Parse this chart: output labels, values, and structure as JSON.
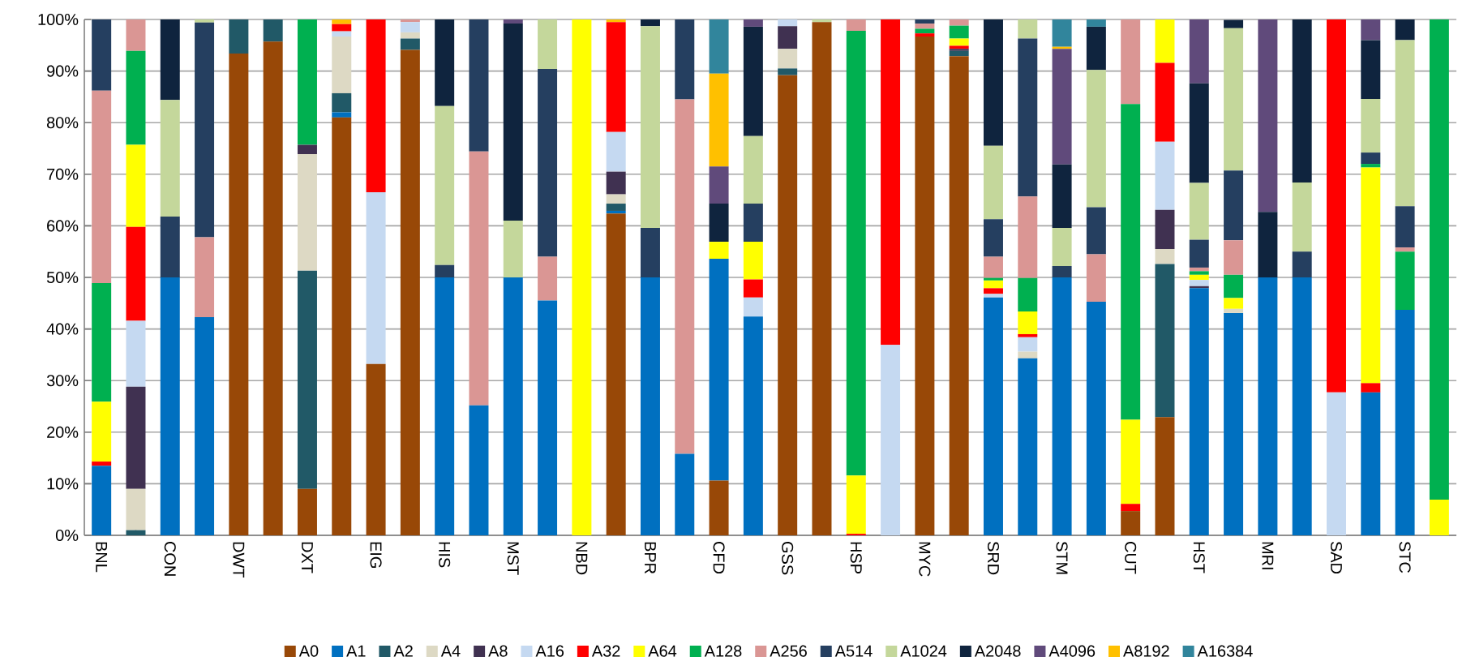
{
  "chart_data": {
    "type": "bar",
    "stacked": true,
    "categories": [
      "BNL",
      null,
      "CON",
      null,
      "DWT",
      null,
      "DXT",
      null,
      "EIG",
      null,
      "HIS",
      null,
      "MST",
      null,
      "NBD",
      null,
      "BPR",
      null,
      "CFD",
      null,
      "GSS",
      null,
      "HSP",
      null,
      "MYC",
      null,
      "SRD",
      null,
      "STM",
      null,
      "CUT",
      null,
      "HST",
      null,
      "MRI",
      null,
      "SAD",
      null,
      "STC",
      null
    ],
    "ylim": [
      0,
      100
    ],
    "yticks": [
      {
        "value": 0,
        "label": "0%"
      },
      {
        "value": 10,
        "label": "10%"
      },
      {
        "value": 20,
        "label": "20%"
      },
      {
        "value": 30,
        "label": "30%"
      },
      {
        "value": 40,
        "label": "40%"
      },
      {
        "value": 50,
        "label": "50%"
      },
      {
        "value": 60,
        "label": "60%"
      },
      {
        "value": 70,
        "label": "70%"
      },
      {
        "value": 80,
        "label": "80%"
      },
      {
        "value": 90,
        "label": "90%"
      },
      {
        "value": 100,
        "label": "100%"
      }
    ],
    "grid": "y",
    "legend": "bottom",
    "series": [
      {
        "name": "A0",
        "color": "#984807",
        "values": [
          null,
          null,
          null,
          null,
          93.4,
          95.7,
          9,
          81,
          33.2,
          94.1,
          null,
          null,
          null,
          null,
          null,
          62.4,
          null,
          null,
          10.6,
          null,
          89.2,
          99.5,
          null,
          null,
          96.7,
          92.9,
          null,
          null,
          null,
          null,
          4.7,
          22.9,
          null,
          null,
          null,
          null,
          null,
          null,
          null,
          null
        ]
      },
      {
        "name": "A1",
        "color": "#0070c0",
        "values": [
          13.5,
          null,
          50,
          42.3,
          null,
          null,
          null,
          1,
          null,
          null,
          50,
          25.2,
          50,
          45.5,
          null,
          0.5,
          50,
          15.8,
          43,
          42.4,
          null,
          null,
          null,
          null,
          null,
          null,
          46.1,
          34.3,
          50,
          45.3,
          null,
          null,
          47.9,
          43.1,
          50,
          50,
          null,
          27.7,
          43.7,
          null
        ]
      },
      {
        "name": "A2",
        "color": "#215967",
        "values": [
          null,
          1,
          null,
          null,
          6.6,
          4.3,
          42.3,
          3.7,
          null,
          2.2,
          null,
          null,
          null,
          null,
          null,
          1.4,
          null,
          null,
          null,
          null,
          1.3,
          null,
          null,
          null,
          null,
          1.0,
          null,
          null,
          null,
          null,
          null,
          29.7,
          null,
          null,
          null,
          null,
          null,
          null,
          null,
          null
        ]
      },
      {
        "name": "A4",
        "color": "#ddd9c4",
        "values": [
          null,
          8,
          null,
          null,
          null,
          null,
          22.6,
          11,
          null,
          1.2,
          null,
          null,
          null,
          null,
          null,
          1.8,
          null,
          null,
          null,
          null,
          3.8,
          null,
          null,
          null,
          null,
          null,
          null,
          1.3,
          null,
          null,
          null,
          2.9,
          null,
          0.8,
          null,
          null,
          null,
          null,
          null,
          null
        ]
      },
      {
        "name": "A8",
        "color": "#403151",
        "values": [
          null,
          19.8,
          null,
          null,
          null,
          null,
          1.8,
          null,
          null,
          null,
          null,
          null,
          null,
          null,
          null,
          4.4,
          null,
          null,
          null,
          null,
          4.4,
          null,
          null,
          null,
          null,
          0.4,
          null,
          null,
          null,
          null,
          null,
          7.6,
          0.4,
          null,
          null,
          null,
          null,
          null,
          null,
          null
        ]
      },
      {
        "name": "A16",
        "color": "#c5d9f1",
        "values": [
          null,
          12.8,
          null,
          null,
          null,
          null,
          null,
          1,
          33.3,
          2,
          null,
          null,
          null,
          null,
          null,
          7.7,
          null,
          null,
          null,
          3.7,
          1.3,
          null,
          null,
          36.9,
          null,
          null,
          0.7,
          2.8,
          null,
          null,
          null,
          13.2,
          1.2,
          null,
          null,
          null,
          27.7,
          null,
          null,
          null
        ]
      },
      {
        "name": "A32",
        "color": "#ff0000",
        "values": [
          0.8,
          18.2,
          null,
          null,
          null,
          null,
          null,
          1.4,
          33.5,
          null,
          null,
          null,
          null,
          null,
          null,
          21.3,
          null,
          null,
          null,
          3.5,
          null,
          null,
          0.3,
          63.1,
          0.6,
          0.6,
          1.1,
          0.6,
          null,
          null,
          1.4,
          15.3,
          null,
          null,
          null,
          null,
          72.3,
          1.8,
          null,
          null
        ]
      },
      {
        "name": "A64",
        "color": "#ffff00",
        "values": [
          11.6,
          15.9,
          null,
          null,
          null,
          null,
          null,
          null,
          null,
          null,
          null,
          null,
          null,
          null,
          100,
          null,
          null,
          null,
          3.3,
          7.3,
          null,
          null,
          11.3,
          null,
          null,
          1.4,
          1.5,
          4.4,
          null,
          null,
          16.3,
          8.4,
          1.0,
          2.1,
          null,
          null,
          null,
          41.8,
          null,
          6.9
        ]
      },
      {
        "name": "A128",
        "color": "#00b050",
        "values": [
          23,
          18.2,
          null,
          null,
          null,
          null,
          24.3,
          null,
          null,
          null,
          null,
          null,
          null,
          null,
          null,
          null,
          null,
          null,
          null,
          null,
          null,
          null,
          86.2,
          null,
          0.9,
          2.5,
          0.5,
          6.5,
          null,
          null,
          61.2,
          null,
          0.7,
          4.5,
          null,
          null,
          null,
          0.7,
          11.3,
          93.1
        ]
      },
      {
        "name": "A256",
        "color": "#da9694",
        "values": [
          37.3,
          6.1,
          null,
          15.5,
          null,
          null,
          null,
          null,
          null,
          0.5,
          null,
          49.2,
          null,
          8.5,
          null,
          null,
          null,
          68.7,
          null,
          null,
          null,
          null,
          2.2,
          null,
          1.0,
          1.2,
          4.1,
          15.8,
          null,
          9.2,
          16.4,
          null,
          0.7,
          6.7,
          null,
          null,
          null,
          null,
          0.8,
          null
        ]
      },
      {
        "name": "A514",
        "color": "#253f60",
        "values": [
          13.8,
          null,
          11.8,
          41.6,
          null,
          null,
          null,
          null,
          null,
          null,
          2.4,
          25.6,
          null,
          36.4,
          null,
          null,
          9.6,
          15.5,
          null,
          7.4,
          null,
          null,
          null,
          null,
          0.8,
          null,
          7.3,
          30.6,
          2.2,
          9.1,
          null,
          null,
          5.4,
          13.5,
          null,
          5,
          null,
          2.2,
          8,
          null
        ]
      },
      {
        "name": "A1024",
        "color": "#c4d79b",
        "values": [
          null,
          null,
          22.6,
          0.6,
          null,
          null,
          null,
          null,
          null,
          null,
          30.8,
          null,
          11,
          9.6,
          null,
          null,
          39.1,
          null,
          null,
          13.1,
          null,
          0.5,
          null,
          null,
          null,
          null,
          14.2,
          3.7,
          7.4,
          26.6,
          null,
          null,
          11,
          27.6,
          null,
          13.4,
          null,
          10.4,
          32.2,
          null
        ]
      },
      {
        "name": "A2048",
        "color": "#0f243e",
        "values": [
          null,
          null,
          15.6,
          null,
          null,
          null,
          null,
          null,
          null,
          null,
          16.8,
          null,
          38.2,
          null,
          null,
          null,
          1.3,
          null,
          7.4,
          21.2,
          null,
          null,
          null,
          null,
          null,
          null,
          24.5,
          null,
          12.3,
          8.4,
          null,
          null,
          19.3,
          1.6,
          12.7,
          31.6,
          null,
          11.4,
          4,
          null
        ]
      },
      {
        "name": "A4096",
        "color": "#604a7b",
        "values": [
          null,
          null,
          null,
          null,
          null,
          null,
          null,
          null,
          null,
          null,
          null,
          null,
          0.8,
          null,
          null,
          null,
          null,
          null,
          7.2,
          1.4,
          null,
          null,
          null,
          null,
          null,
          null,
          null,
          null,
          22.4,
          null,
          null,
          null,
          12.4,
          null,
          37.3,
          null,
          null,
          4,
          null,
          null
        ]
      },
      {
        "name": "A8192",
        "color": "#ffc000",
        "values": [
          null,
          null,
          null,
          null,
          null,
          null,
          null,
          0.9,
          null,
          null,
          null,
          null,
          null,
          null,
          null,
          0.5,
          null,
          null,
          18,
          null,
          null,
          null,
          null,
          null,
          null,
          null,
          null,
          null,
          0.4,
          null,
          null,
          null,
          null,
          null,
          null,
          null,
          null,
          null,
          null,
          null
        ]
      },
      {
        "name": "A16384",
        "color": "#31859c",
        "values": [
          null,
          null,
          null,
          null,
          null,
          null,
          null,
          null,
          null,
          null,
          null,
          null,
          null,
          null,
          null,
          null,
          null,
          null,
          10.5,
          null,
          null,
          null,
          null,
          null,
          null,
          null,
          null,
          null,
          5.3,
          1.4,
          null,
          null,
          null,
          null,
          null,
          null,
          null,
          null,
          null,
          null
        ]
      }
    ]
  }
}
